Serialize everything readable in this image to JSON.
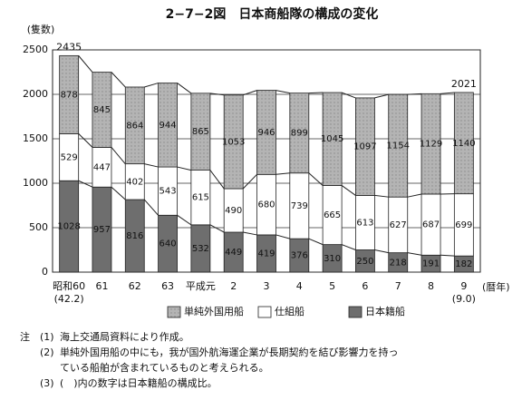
{
  "chart_data": {
    "type": "stacked-bar",
    "title": "2−7−2図　日本商船隊の構成の変化",
    "y_label": "(隻数)",
    "x_label": "(暦年)",
    "categories": [
      "昭和60",
      "61",
      "62",
      "63",
      "平成元",
      "2",
      "3",
      "4",
      "5",
      "6",
      "7",
      "8",
      "9"
    ],
    "x_sublabels": [
      "(42.2)",
      null,
      null,
      null,
      null,
      null,
      null,
      null,
      null,
      null,
      null,
      null,
      "(9.0)"
    ],
    "series": [
      {
        "name": "日本籍船",
        "color": "#6e6e6e",
        "values": [
          1028,
          957,
          816,
          640,
          532,
          449,
          419,
          376,
          310,
          250,
          218,
          191,
          182
        ]
      },
      {
        "name": "仕組船",
        "color": "#ffffff",
        "values": [
          529,
          447,
          402,
          543,
          615,
          490,
          680,
          739,
          665,
          613,
          627,
          687,
          699
        ]
      },
      {
        "name": "単純外国用船",
        "color": "#b4b4b4",
        "values": [
          878,
          845,
          864,
          944,
          865,
          1053,
          946,
          899,
          1045,
          1097,
          1154,
          1129,
          1140
        ]
      }
    ],
    "total_labels": [
      2435,
      null,
      null,
      null,
      null,
      null,
      null,
      null,
      null,
      null,
      null,
      null,
      2021
    ],
    "ylim": [
      0,
      2500
    ],
    "yticks": [
      0,
      500,
      1000,
      1500,
      2000,
      2500
    ],
    "grid": true,
    "legend_order": [
      2,
      1,
      0
    ]
  },
  "notes": [
    {
      "mark": "注",
      "num": "(1)",
      "text": "海上交通局資料により作成。"
    },
    {
      "mark": null,
      "num": "(2)",
      "text": "単純外国用船の中にも，我が国外航海運企業が長期契約を結び影響力を持っ"
    },
    {
      "mark": null,
      "num": null,
      "text": "ている船舶が含まれているものと考えられる。"
    },
    {
      "mark": null,
      "num": "(3)",
      "text": "(　)内の数字は日本籍船の構成比。"
    }
  ]
}
